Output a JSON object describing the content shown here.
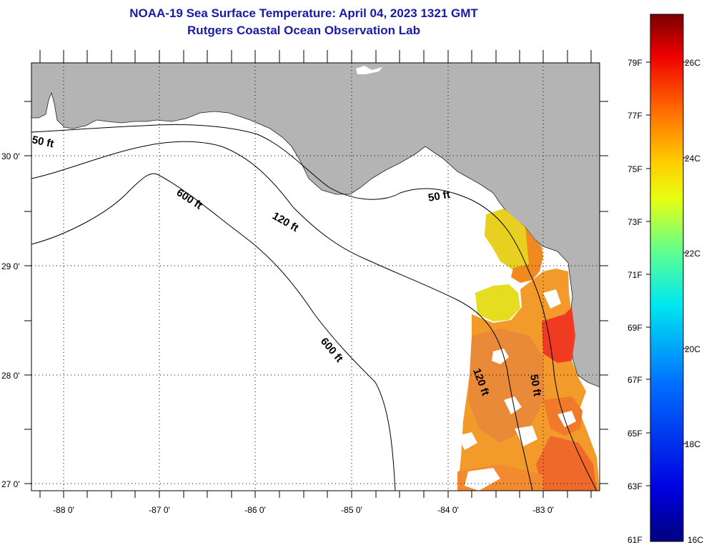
{
  "title": {
    "line1": "NOAA-19 Sea Surface Temperature:  April 04, 2023 1321 GMT",
    "line2": "Rutgers Coastal Ocean Observation Lab"
  },
  "map": {
    "lon_labels": [
      "-88 0'",
      "-87 0'",
      "-86 0'",
      "-85 0'",
      "-84 0'",
      "-83 0'"
    ],
    "lat_labels": [
      "30 0'",
      "29 0'",
      "28 0'",
      "27 0'"
    ],
    "contour_labels": [
      "50 ft",
      "600 ft",
      "120 ft",
      "50 ft",
      "600 ft",
      "120 ft",
      "50 ft"
    ]
  },
  "colorbar": {
    "f_labels": [
      "79F",
      "77F",
      "75F",
      "73F",
      "71F",
      "69F",
      "67F",
      "65F",
      "63F",
      "61F"
    ],
    "c_labels": [
      "26C",
      "24C",
      "22C",
      "20C",
      "18C",
      "16C"
    ]
  },
  "colors": {
    "land": "#b4b4b4",
    "water": "#ffffff",
    "title": "#1a1aa6"
  }
}
